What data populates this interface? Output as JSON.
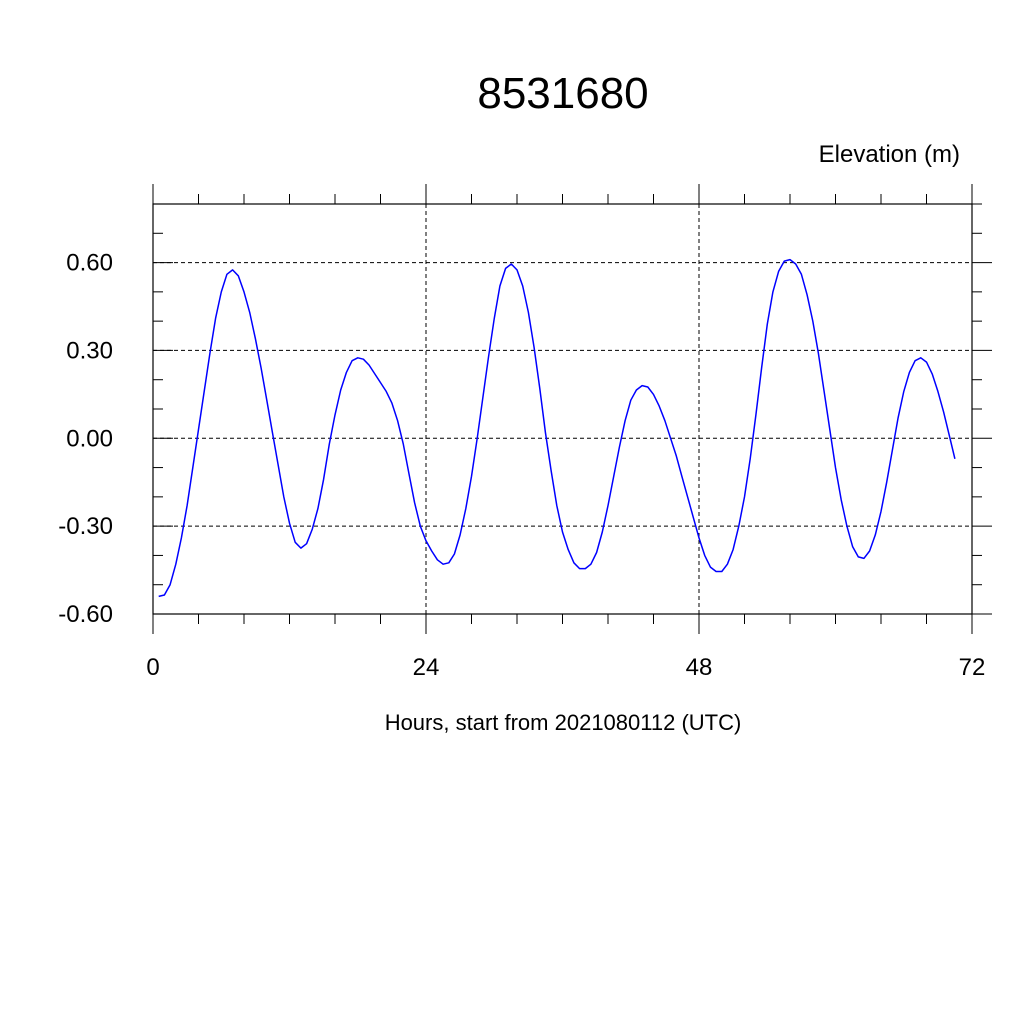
{
  "chart_data": {
    "type": "line",
    "title": "8531680",
    "units_label": "Elevation (m)",
    "xlabel": "Hours, start from 2021080112 (UTC)",
    "xlim": [
      0,
      72
    ],
    "ylim": [
      -0.6,
      0.8
    ],
    "x_ticks": [
      0,
      24,
      48,
      72
    ],
    "x_tick_labels": [
      "0",
      "24",
      "48",
      "72"
    ],
    "y_ticks": [
      -0.6,
      -0.3,
      0.0,
      0.3,
      0.6
    ],
    "y_tick_labels": [
      "-0.60",
      "-0.30",
      "0.00",
      "0.30",
      "0.60"
    ],
    "grid": true,
    "series": [
      {
        "color": "#0000ff",
        "points": [
          [
            0.5,
            -0.54
          ],
          [
            1,
            -0.535
          ],
          [
            1.5,
            -0.5
          ],
          [
            2,
            -0.43
          ],
          [
            2.5,
            -0.34
          ],
          [
            3,
            -0.23
          ],
          [
            3.5,
            -0.1
          ],
          [
            4,
            0.03
          ],
          [
            4.5,
            0.16
          ],
          [
            5,
            0.29
          ],
          [
            5.5,
            0.41
          ],
          [
            6,
            0.5
          ],
          [
            6.5,
            0.56
          ],
          [
            7,
            0.575
          ],
          [
            7.5,
            0.555
          ],
          [
            8,
            0.5
          ],
          [
            8.5,
            0.43
          ],
          [
            9,
            0.34
          ],
          [
            9.5,
            0.24
          ],
          [
            10,
            0.13
          ],
          [
            10.5,
            0.02
          ],
          [
            11,
            -0.09
          ],
          [
            11.5,
            -0.2
          ],
          [
            12,
            -0.29
          ],
          [
            12.5,
            -0.355
          ],
          [
            13,
            -0.375
          ],
          [
            13.5,
            -0.36
          ],
          [
            14,
            -0.31
          ],
          [
            14.5,
            -0.24
          ],
          [
            15,
            -0.14
          ],
          [
            15.5,
            -0.02
          ],
          [
            16,
            0.08
          ],
          [
            16.5,
            0.165
          ],
          [
            17,
            0.225
          ],
          [
            17.5,
            0.265
          ],
          [
            18,
            0.275
          ],
          [
            18.5,
            0.27
          ],
          [
            19,
            0.25
          ],
          [
            19.5,
            0.22
          ],
          [
            20,
            0.19
          ],
          [
            20.5,
            0.16
          ],
          [
            21,
            0.12
          ],
          [
            21.5,
            0.06
          ],
          [
            22,
            -0.02
          ],
          [
            22.5,
            -0.12
          ],
          [
            23,
            -0.22
          ],
          [
            23.5,
            -0.3
          ],
          [
            24,
            -0.35
          ],
          [
            24.5,
            -0.385
          ],
          [
            25,
            -0.415
          ],
          [
            25.5,
            -0.43
          ],
          [
            26,
            -0.425
          ],
          [
            26.5,
            -0.395
          ],
          [
            27,
            -0.33
          ],
          [
            27.5,
            -0.24
          ],
          [
            28,
            -0.13
          ],
          [
            28.5,
            0.0
          ],
          [
            29,
            0.14
          ],
          [
            29.5,
            0.28
          ],
          [
            30,
            0.41
          ],
          [
            30.5,
            0.52
          ],
          [
            31,
            0.58
          ],
          [
            31.5,
            0.595
          ],
          [
            32,
            0.575
          ],
          [
            32.5,
            0.52
          ],
          [
            33,
            0.43
          ],
          [
            33.5,
            0.31
          ],
          [
            34,
            0.17
          ],
          [
            34.5,
            0.02
          ],
          [
            35,
            -0.11
          ],
          [
            35.5,
            -0.23
          ],
          [
            36,
            -0.32
          ],
          [
            36.5,
            -0.38
          ],
          [
            37,
            -0.425
          ],
          [
            37.5,
            -0.445
          ],
          [
            38,
            -0.445
          ],
          [
            38.5,
            -0.43
          ],
          [
            39,
            -0.39
          ],
          [
            39.5,
            -0.32
          ],
          [
            40,
            -0.23
          ],
          [
            40.5,
            -0.13
          ],
          [
            41,
            -0.03
          ],
          [
            41.5,
            0.06
          ],
          [
            42,
            0.13
          ],
          [
            42.5,
            0.165
          ],
          [
            43,
            0.18
          ],
          [
            43.5,
            0.175
          ],
          [
            44,
            0.15
          ],
          [
            44.5,
            0.11
          ],
          [
            45,
            0.06
          ],
          [
            45.5,
            0.0
          ],
          [
            46,
            -0.06
          ],
          [
            46.5,
            -0.13
          ],
          [
            47,
            -0.2
          ],
          [
            47.5,
            -0.27
          ],
          [
            48,
            -0.34
          ],
          [
            48.5,
            -0.4
          ],
          [
            49,
            -0.44
          ],
          [
            49.5,
            -0.455
          ],
          [
            50,
            -0.455
          ],
          [
            50.5,
            -0.43
          ],
          [
            51,
            -0.38
          ],
          [
            51.5,
            -0.3
          ],
          [
            52,
            -0.2
          ],
          [
            52.5,
            -0.07
          ],
          [
            53,
            0.08
          ],
          [
            53.5,
            0.24
          ],
          [
            54,
            0.39
          ],
          [
            54.5,
            0.5
          ],
          [
            55,
            0.57
          ],
          [
            55.5,
            0.605
          ],
          [
            56,
            0.61
          ],
          [
            56.5,
            0.595
          ],
          [
            57,
            0.56
          ],
          [
            57.5,
            0.49
          ],
          [
            58,
            0.4
          ],
          [
            58.5,
            0.29
          ],
          [
            59,
            0.16
          ],
          [
            59.5,
            0.03
          ],
          [
            60,
            -0.1
          ],
          [
            60.5,
            -0.21
          ],
          [
            61,
            -0.3
          ],
          [
            61.5,
            -0.37
          ],
          [
            62,
            -0.405
          ],
          [
            62.5,
            -0.41
          ],
          [
            63,
            -0.385
          ],
          [
            63.5,
            -0.33
          ],
          [
            64,
            -0.25
          ],
          [
            64.5,
            -0.15
          ],
          [
            65,
            -0.04
          ],
          [
            65.5,
            0.07
          ],
          [
            66,
            0.16
          ],
          [
            66.5,
            0.225
          ],
          [
            67,
            0.265
          ],
          [
            67.5,
            0.275
          ],
          [
            68,
            0.26
          ],
          [
            68.5,
            0.22
          ],
          [
            69,
            0.16
          ],
          [
            69.5,
            0.09
          ],
          [
            70,
            0.01
          ],
          [
            70.5,
            -0.07
          ]
        ]
      }
    ]
  }
}
